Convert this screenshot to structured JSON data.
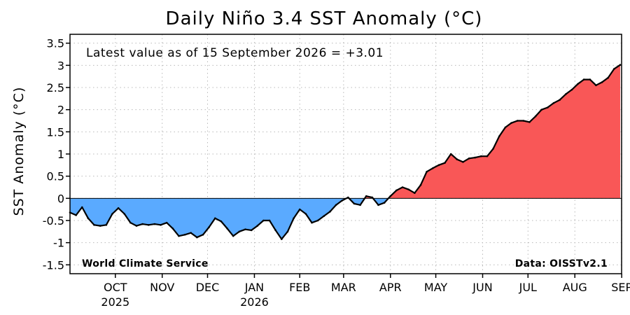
{
  "chart_data": {
    "type": "area",
    "title": "Daily Niño 3.4 SST Anomaly (°C)",
    "ylabel": "SST Anomaly (°C)",
    "xlabel": "",
    "ylim": [
      -1.7,
      3.7
    ],
    "yticks": [
      -1.5,
      -1,
      -0.5,
      0,
      0.5,
      1,
      1.5,
      2,
      2.5,
      3,
      3.5
    ],
    "grid": true,
    "x_range": [
      "2025-09-16",
      "2026-09-15"
    ],
    "months": [
      {
        "label": "OCT",
        "year": "2025",
        "date": "2025-10-16"
      },
      {
        "label": "NOV",
        "year": "",
        "date": "2025-11-16"
      },
      {
        "label": "DEC",
        "year": "",
        "date": "2025-12-16"
      },
      {
        "label": "JAN",
        "year": "2026",
        "date": "2026-01-16"
      },
      {
        "label": "FEB",
        "year": "",
        "date": "2026-02-15"
      },
      {
        "label": "MAR",
        "year": "",
        "date": "2026-03-16"
      },
      {
        "label": "APR",
        "year": "",
        "date": "2026-04-16"
      },
      {
        "label": "MAY",
        "year": "",
        "date": "2026-05-16"
      },
      {
        "label": "JUN",
        "year": "",
        "date": "2026-06-16"
      },
      {
        "label": "JUL",
        "year": "",
        "date": "2026-07-16"
      },
      {
        "label": "AUG",
        "year": "",
        "date": "2026-08-16"
      },
      {
        "label": "SEP",
        "year": "",
        "date": "2026-09-16"
      }
    ],
    "series": [
      {
        "positive_color": "#f95757",
        "negative_color": "#5aaaff",
        "line_color": "#000000",
        "points": [
          {
            "x": "2025-09-16",
            "y": -0.32
          },
          {
            "x": "2025-09-20",
            "y": -0.38
          },
          {
            "x": "2025-09-24",
            "y": -0.2
          },
          {
            "x": "2025-09-28",
            "y": -0.45
          },
          {
            "x": "2025-10-02",
            "y": -0.6
          },
          {
            "x": "2025-10-06",
            "y": -0.62
          },
          {
            "x": "2025-10-10",
            "y": -0.6
          },
          {
            "x": "2025-10-14",
            "y": -0.35
          },
          {
            "x": "2025-10-18",
            "y": -0.22
          },
          {
            "x": "2025-10-22",
            "y": -0.35
          },
          {
            "x": "2025-10-26",
            "y": -0.55
          },
          {
            "x": "2025-10-30",
            "y": -0.62
          },
          {
            "x": "2025-11-03",
            "y": -0.58
          },
          {
            "x": "2025-11-07",
            "y": -0.6
          },
          {
            "x": "2025-11-11",
            "y": -0.58
          },
          {
            "x": "2025-11-15",
            "y": -0.6
          },
          {
            "x": "2025-11-19",
            "y": -0.55
          },
          {
            "x": "2025-11-23",
            "y": -0.68
          },
          {
            "x": "2025-11-27",
            "y": -0.85
          },
          {
            "x": "2025-12-01",
            "y": -0.82
          },
          {
            "x": "2025-12-05",
            "y": -0.78
          },
          {
            "x": "2025-12-09",
            "y": -0.88
          },
          {
            "x": "2025-12-13",
            "y": -0.82
          },
          {
            "x": "2025-12-17",
            "y": -0.65
          },
          {
            "x": "2025-12-21",
            "y": -0.45
          },
          {
            "x": "2025-12-25",
            "y": -0.52
          },
          {
            "x": "2025-12-29",
            "y": -0.68
          },
          {
            "x": "2026-01-02",
            "y": -0.85
          },
          {
            "x": "2026-01-06",
            "y": -0.75
          },
          {
            "x": "2026-01-10",
            "y": -0.7
          },
          {
            "x": "2026-01-14",
            "y": -0.72
          },
          {
            "x": "2026-01-18",
            "y": -0.62
          },
          {
            "x": "2026-01-22",
            "y": -0.5
          },
          {
            "x": "2026-01-26",
            "y": -0.5
          },
          {
            "x": "2026-01-30",
            "y": -0.72
          },
          {
            "x": "2026-02-03",
            "y": -0.92
          },
          {
            "x": "2026-02-07",
            "y": -0.75
          },
          {
            "x": "2026-02-11",
            "y": -0.45
          },
          {
            "x": "2026-02-15",
            "y": -0.25
          },
          {
            "x": "2026-02-19",
            "y": -0.35
          },
          {
            "x": "2026-02-23",
            "y": -0.55
          },
          {
            "x": "2026-02-27",
            "y": -0.5
          },
          {
            "x": "2026-03-03",
            "y": -0.4
          },
          {
            "x": "2026-03-07",
            "y": -0.3
          },
          {
            "x": "2026-03-11",
            "y": -0.15
          },
          {
            "x": "2026-03-15",
            "y": -0.05
          },
          {
            "x": "2026-03-19",
            "y": 0.02
          },
          {
            "x": "2026-03-23",
            "y": -0.12
          },
          {
            "x": "2026-03-27",
            "y": -0.15
          },
          {
            "x": "2026-03-31",
            "y": 0.05
          },
          {
            "x": "2026-04-04",
            "y": 0.02
          },
          {
            "x": "2026-04-08",
            "y": -0.15
          },
          {
            "x": "2026-04-12",
            "y": -0.1
          },
          {
            "x": "2026-04-16",
            "y": 0.05
          },
          {
            "x": "2026-04-20",
            "y": 0.18
          },
          {
            "x": "2026-04-24",
            "y": 0.25
          },
          {
            "x": "2026-04-28",
            "y": 0.2
          },
          {
            "x": "2026-05-02",
            "y": 0.12
          },
          {
            "x": "2026-05-06",
            "y": 0.3
          },
          {
            "x": "2026-05-10",
            "y": 0.6
          },
          {
            "x": "2026-05-14",
            "y": 0.68
          },
          {
            "x": "2026-05-18",
            "y": 0.75
          },
          {
            "x": "2026-05-22",
            "y": 0.8
          },
          {
            "x": "2026-05-26",
            "y": 1.0
          },
          {
            "x": "2026-05-30",
            "y": 0.88
          },
          {
            "x": "2026-06-03",
            "y": 0.82
          },
          {
            "x": "2026-06-07",
            "y": 0.9
          },
          {
            "x": "2026-06-11",
            "y": 0.92
          },
          {
            "x": "2026-06-15",
            "y": 0.95
          },
          {
            "x": "2026-06-19",
            "y": 0.95
          },
          {
            "x": "2026-06-23",
            "y": 1.12
          },
          {
            "x": "2026-06-27",
            "y": 1.4
          },
          {
            "x": "2026-07-01",
            "y": 1.6
          },
          {
            "x": "2026-07-05",
            "y": 1.7
          },
          {
            "x": "2026-07-09",
            "y": 1.75
          },
          {
            "x": "2026-07-13",
            "y": 1.75
          },
          {
            "x": "2026-07-17",
            "y": 1.72
          },
          {
            "x": "2026-07-21",
            "y": 1.85
          },
          {
            "x": "2026-07-25",
            "y": 2.0
          },
          {
            "x": "2026-07-29",
            "y": 2.05
          },
          {
            "x": "2026-08-02",
            "y": 2.15
          },
          {
            "x": "2026-08-06",
            "y": 2.22
          },
          {
            "x": "2026-08-10",
            "y": 2.35
          },
          {
            "x": "2026-08-14",
            "y": 2.45
          },
          {
            "x": "2026-08-18",
            "y": 2.58
          },
          {
            "x": "2026-08-22",
            "y": 2.68
          },
          {
            "x": "2026-08-26",
            "y": 2.68
          },
          {
            "x": "2026-08-30",
            "y": 2.55
          },
          {
            "x": "2026-09-03",
            "y": 2.62
          },
          {
            "x": "2026-09-07",
            "y": 2.72
          },
          {
            "x": "2026-09-11",
            "y": 2.92
          },
          {
            "x": "2026-09-15",
            "y": 3.01
          }
        ]
      }
    ],
    "annotations": {
      "latest": "Latest value as of 15 September 2026 = +3.01",
      "source_left": "World Climate Service",
      "source_right": "Data: OISSTv2.1"
    }
  }
}
